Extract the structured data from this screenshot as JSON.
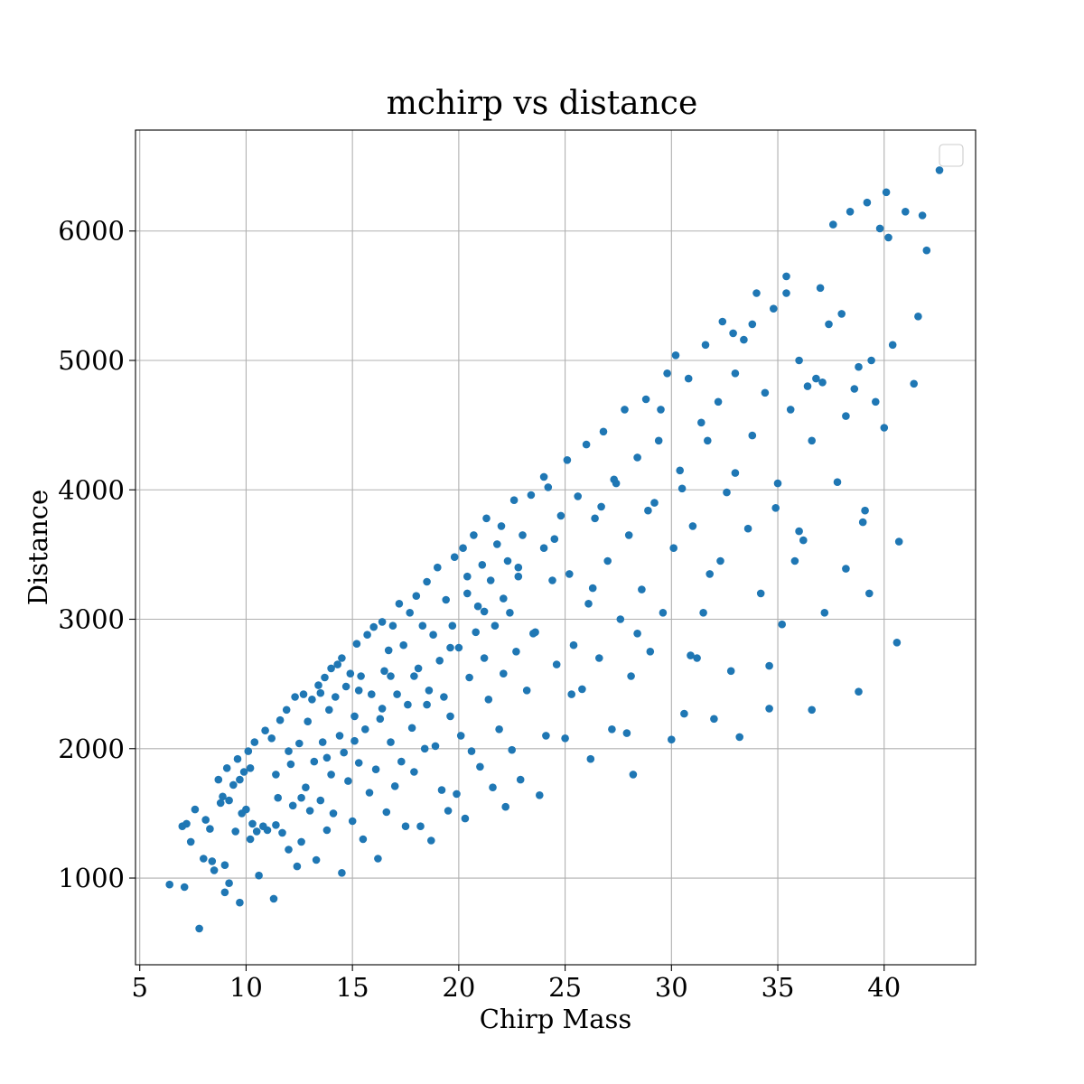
{
  "chart_data": {
    "type": "scatter",
    "title": "mchirp vs distance",
    "xlabel": "Chirp Mass",
    "ylabel": "Distance",
    "xlim": [
      4.8,
      44.3
    ],
    "ylim": [
      330,
      6780
    ],
    "xticks": [
      5,
      10,
      15,
      20,
      25,
      30,
      35,
      40
    ],
    "yticks": [
      1000,
      2000,
      3000,
      4000,
      5000,
      6000
    ],
    "grid": true,
    "legend": {
      "position": "top-right",
      "entries": []
    },
    "series": [
      {
        "color": "#1f77b4",
        "points": [
          [
            6.4,
            950
          ],
          [
            7.1,
            930
          ],
          [
            7.8,
            610
          ],
          [
            7.0,
            1400
          ],
          [
            7.2,
            1420
          ],
          [
            7.4,
            1280
          ],
          [
            7.6,
            1530
          ],
          [
            8.0,
            1150
          ],
          [
            8.1,
            1450
          ],
          [
            8.3,
            1380
          ],
          [
            8.4,
            1130
          ],
          [
            8.5,
            1060
          ],
          [
            8.7,
            1760
          ],
          [
            8.8,
            1580
          ],
          [
            8.9,
            1630
          ],
          [
            9.0,
            890
          ],
          [
            9.0,
            1100
          ],
          [
            9.1,
            1850
          ],
          [
            9.2,
            960
          ],
          [
            9.4,
            1720
          ],
          [
            9.5,
            1360
          ],
          [
            9.6,
            1920
          ],
          [
            9.7,
            1760
          ],
          [
            9.7,
            810
          ],
          [
            9.8,
            1500
          ],
          [
            9.9,
            1820
          ],
          [
            10.0,
            1530
          ],
          [
            10.1,
            1980
          ],
          [
            10.2,
            1850
          ],
          [
            10.3,
            1420
          ],
          [
            10.4,
            2050
          ],
          [
            10.5,
            1360
          ],
          [
            10.6,
            1020
          ],
          [
            10.8,
            1400
          ],
          [
            10.9,
            2140
          ],
          [
            11.0,
            1370
          ],
          [
            11.2,
            2080
          ],
          [
            11.3,
            840
          ],
          [
            11.4,
            1800
          ],
          [
            11.5,
            1620
          ],
          [
            11.6,
            2220
          ],
          [
            11.7,
            1350
          ],
          [
            11.9,
            2300
          ],
          [
            12.0,
            1220
          ],
          [
            12.1,
            1880
          ],
          [
            12.2,
            1560
          ],
          [
            12.3,
            2400
          ],
          [
            12.4,
            1090
          ],
          [
            12.5,
            2040
          ],
          [
            12.6,
            1280
          ],
          [
            12.7,
            2420
          ],
          [
            12.8,
            1700
          ],
          [
            12.9,
            2210
          ],
          [
            13.0,
            1520
          ],
          [
            13.1,
            2380
          ],
          [
            13.2,
            1900
          ],
          [
            13.3,
            1140
          ],
          [
            13.4,
            2490
          ],
          [
            13.5,
            1600
          ],
          [
            13.6,
            2050
          ],
          [
            13.7,
            2550
          ],
          [
            13.8,
            1370
          ],
          [
            13.9,
            2300
          ],
          [
            14.0,
            2620
          ],
          [
            14.0,
            1800
          ],
          [
            14.1,
            1500
          ],
          [
            14.2,
            2400
          ],
          [
            14.3,
            2650
          ],
          [
            14.4,
            2100
          ],
          [
            14.5,
            1040
          ],
          [
            14.5,
            2700
          ],
          [
            14.6,
            1970
          ],
          [
            14.7,
            2480
          ],
          [
            14.8,
            1750
          ],
          [
            14.9,
            2580
          ],
          [
            15.0,
            1440
          ],
          [
            15.1,
            2250
          ],
          [
            15.2,
            2810
          ],
          [
            15.3,
            1890
          ],
          [
            15.4,
            2560
          ],
          [
            15.5,
            1300
          ],
          [
            15.6,
            2150
          ],
          [
            15.7,
            2880
          ],
          [
            15.8,
            1660
          ],
          [
            15.9,
            2420
          ],
          [
            16.0,
            2940
          ],
          [
            16.1,
            1840
          ],
          [
            16.2,
            1150
          ],
          [
            16.3,
            2230
          ],
          [
            16.4,
            2980
          ],
          [
            16.5,
            2600
          ],
          [
            16.6,
            1510
          ],
          [
            16.7,
            2760
          ],
          [
            16.8,
            2050
          ],
          [
            16.9,
            2950
          ],
          [
            17.0,
            1710
          ],
          [
            17.1,
            2420
          ],
          [
            17.2,
            3120
          ],
          [
            17.3,
            1900
          ],
          [
            17.4,
            2800
          ],
          [
            17.5,
            1400
          ],
          [
            17.6,
            2340
          ],
          [
            17.7,
            3050
          ],
          [
            17.8,
            2160
          ],
          [
            17.9,
            1820
          ],
          [
            18.0,
            3180
          ],
          [
            18.1,
            2620
          ],
          [
            18.2,
            1400
          ],
          [
            18.3,
            2950
          ],
          [
            18.4,
            2000
          ],
          [
            18.5,
            3290
          ],
          [
            18.6,
            2450
          ],
          [
            18.7,
            1290
          ],
          [
            18.8,
            2880
          ],
          [
            18.9,
            2020
          ],
          [
            19.0,
            3400
          ],
          [
            19.1,
            2680
          ],
          [
            19.2,
            1680
          ],
          [
            19.3,
            2400
          ],
          [
            19.4,
            3150
          ],
          [
            19.5,
            1520
          ],
          [
            19.6,
            2250
          ],
          [
            19.7,
            2950
          ],
          [
            19.8,
            3480
          ],
          [
            19.9,
            1650
          ],
          [
            20.0,
            2780
          ],
          [
            20.1,
            2100
          ],
          [
            20.2,
            3550
          ],
          [
            20.3,
            1460
          ],
          [
            20.4,
            3200
          ],
          [
            20.5,
            2550
          ],
          [
            20.6,
            1980
          ],
          [
            20.7,
            3650
          ],
          [
            20.8,
            2900
          ],
          [
            20.9,
            3100
          ],
          [
            21.0,
            1860
          ],
          [
            21.1,
            3420
          ],
          [
            21.2,
            2700
          ],
          [
            21.3,
            3780
          ],
          [
            21.4,
            2380
          ],
          [
            21.5,
            3300
          ],
          [
            21.6,
            1700
          ],
          [
            21.7,
            2950
          ],
          [
            21.8,
            3580
          ],
          [
            21.9,
            2150
          ],
          [
            22.0,
            3720
          ],
          [
            22.1,
            2580
          ],
          [
            22.2,
            1550
          ],
          [
            22.3,
            3450
          ],
          [
            22.4,
            3050
          ],
          [
            22.5,
            1990
          ],
          [
            22.6,
            3920
          ],
          [
            22.7,
            2750
          ],
          [
            22.8,
            3330
          ],
          [
            22.9,
            1760
          ],
          [
            23.0,
            3650
          ],
          [
            23.2,
            2450
          ],
          [
            23.4,
            3960
          ],
          [
            23.6,
            2900
          ],
          [
            23.8,
            1640
          ],
          [
            24.0,
            3550
          ],
          [
            24.1,
            2100
          ],
          [
            24.2,
            4020
          ],
          [
            24.4,
            3300
          ],
          [
            24.6,
            2650
          ],
          [
            24.8,
            3800
          ],
          [
            25.0,
            2080
          ],
          [
            25.1,
            4230
          ],
          [
            25.2,
            3350
          ],
          [
            25.4,
            2800
          ],
          [
            25.6,
            3950
          ],
          [
            25.8,
            2460
          ],
          [
            26.0,
            4350
          ],
          [
            26.1,
            3120
          ],
          [
            26.2,
            1920
          ],
          [
            26.4,
            3780
          ],
          [
            26.6,
            2700
          ],
          [
            26.8,
            4450
          ],
          [
            27.0,
            3450
          ],
          [
            27.2,
            2150
          ],
          [
            27.4,
            4050
          ],
          [
            27.6,
            3000
          ],
          [
            27.8,
            4620
          ],
          [
            28.0,
            3650
          ],
          [
            28.1,
            2560
          ],
          [
            28.2,
            1800
          ],
          [
            28.4,
            4250
          ],
          [
            28.6,
            3230
          ],
          [
            28.8,
            4700
          ],
          [
            29.0,
            2750
          ],
          [
            29.2,
            3900
          ],
          [
            29.4,
            4380
          ],
          [
            29.6,
            3050
          ],
          [
            29.8,
            4900
          ],
          [
            30.0,
            2070
          ],
          [
            30.1,
            3550
          ],
          [
            30.2,
            5040
          ],
          [
            30.4,
            4150
          ],
          [
            30.6,
            2270
          ],
          [
            30.8,
            4860
          ],
          [
            31.0,
            3720
          ],
          [
            31.2,
            2700
          ],
          [
            31.4,
            4520
          ],
          [
            31.6,
            5120
          ],
          [
            31.8,
            3350
          ],
          [
            32.0,
            2230
          ],
          [
            32.2,
            4680
          ],
          [
            32.4,
            5300
          ],
          [
            32.6,
            3980
          ],
          [
            32.8,
            2600
          ],
          [
            33.0,
            4900
          ],
          [
            33.2,
            2090
          ],
          [
            33.4,
            5160
          ],
          [
            33.6,
            3700
          ],
          [
            33.8,
            4420
          ],
          [
            34.0,
            5520
          ],
          [
            34.2,
            3200
          ],
          [
            34.4,
            4750
          ],
          [
            34.6,
            2310
          ],
          [
            34.8,
            5400
          ],
          [
            35.0,
            4050
          ],
          [
            35.2,
            2960
          ],
          [
            35.4,
            5650
          ],
          [
            35.6,
            4620
          ],
          [
            35.8,
            3450
          ],
          [
            36.0,
            5000
          ],
          [
            36.2,
            3610
          ],
          [
            36.6,
            2300
          ],
          [
            36.8,
            4860
          ],
          [
            37.0,
            5560
          ],
          [
            37.2,
            3050
          ],
          [
            37.4,
            5280
          ],
          [
            37.6,
            6050
          ],
          [
            37.8,
            4060
          ],
          [
            38.0,
            5360
          ],
          [
            38.2,
            3390
          ],
          [
            38.4,
            6150
          ],
          [
            38.6,
            4780
          ],
          [
            38.8,
            2440
          ],
          [
            39.0,
            3750
          ],
          [
            39.2,
            6220
          ],
          [
            39.4,
            5000
          ],
          [
            39.6,
            4680
          ],
          [
            39.8,
            6020
          ],
          [
            40.0,
            4480
          ],
          [
            40.2,
            5950
          ],
          [
            40.4,
            5120
          ],
          [
            40.6,
            2820
          ],
          [
            40.7,
            3600
          ],
          [
            41.0,
            6150
          ],
          [
            41.4,
            4820
          ],
          [
            41.6,
            5340
          ],
          [
            41.8,
            6120
          ],
          [
            42.0,
            5850
          ],
          [
            42.6,
            6470
          ],
          [
            40.1,
            6300
          ],
          [
            36.4,
            4800
          ],
          [
            35.4,
            5520
          ],
          [
            33.8,
            5280
          ],
          [
            31.7,
            4380
          ],
          [
            28.9,
            3840
          ],
          [
            26.7,
            3870
          ],
          [
            24.5,
            3620
          ],
          [
            22.8,
            3400
          ],
          [
            21.2,
            3060
          ],
          [
            19.6,
            2780
          ],
          [
            17.9,
            2560
          ],
          [
            16.4,
            2310
          ],
          [
            15.1,
            2060
          ],
          [
            13.8,
            1930
          ],
          [
            12.6,
            1620
          ],
          [
            11.4,
            1410
          ],
          [
            10.2,
            1300
          ],
          [
            9.2,
            1600
          ],
          [
            25.3,
            2420
          ],
          [
            27.3,
            4080
          ],
          [
            29.5,
            4620
          ],
          [
            31.5,
            3050
          ],
          [
            33.0,
            4130
          ],
          [
            34.9,
            3860
          ],
          [
            36.6,
            4380
          ],
          [
            38.8,
            4950
          ],
          [
            39.3,
            3200
          ],
          [
            37.1,
            4830
          ],
          [
            32.9,
            5210
          ],
          [
            30.5,
            4010
          ],
          [
            28.4,
            2890
          ],
          [
            26.3,
            3240
          ],
          [
            24.0,
            4100
          ],
          [
            22.1,
            3160
          ],
          [
            20.4,
            3330
          ],
          [
            18.5,
            2340
          ],
          [
            16.8,
            2560
          ],
          [
            15.3,
            2450
          ],
          [
            13.5,
            2430
          ],
          [
            12.0,
            1980
          ],
          [
            23.5,
            2890
          ],
          [
            27.9,
            2120
          ],
          [
            30.9,
            2720
          ],
          [
            32.3,
            3450
          ],
          [
            34.6,
            2640
          ],
          [
            36.0,
            3680
          ],
          [
            38.2,
            4570
          ],
          [
            39.1,
            3840
          ]
        ]
      }
    ]
  }
}
